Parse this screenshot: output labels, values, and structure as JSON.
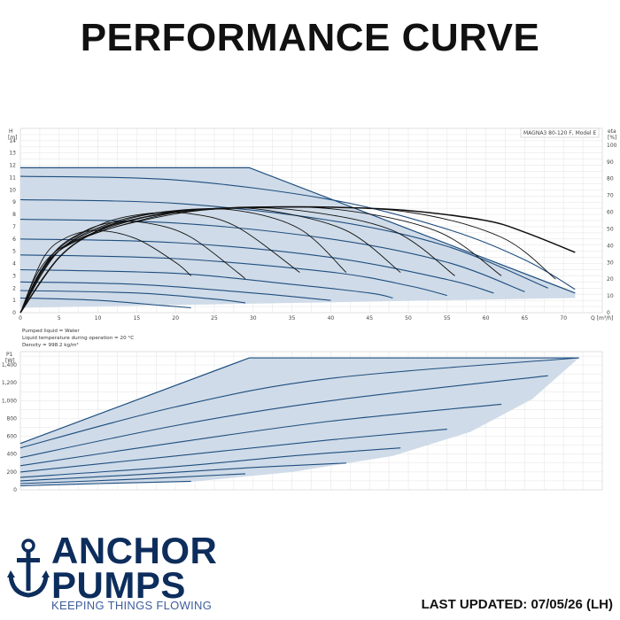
{
  "page_title": "PERFORMANCE CURVE",
  "footer": {
    "brand_line1": "ANCHOR",
    "brand_line2": "PUMPS",
    "tagline": "KEEPING THINGS FLOWING",
    "last_updated": "LAST UPDATED: 07/05/26 (LH)",
    "brand_color": "#0d2d5c",
    "tagline_color": "#3e5e9a"
  },
  "chart_data": [
    {
      "type": "line",
      "model_label": "MAGNA3 80-120 F, Model E",
      "y_axis_label": "H",
      "y_axis_unit": "[m]",
      "y2_axis_label": "eta",
      "y2_axis_unit": "[%]",
      "x_axis_label": "Q [m³/h]",
      "xlim": [
        0,
        75
      ],
      "ylim": [
        0,
        15
      ],
      "y2lim": [
        0,
        110
      ],
      "x_ticks": [
        0,
        5,
        10,
        15,
        20,
        25,
        30,
        35,
        40,
        45,
        50,
        55,
        60,
        65,
        70
      ],
      "y_ticks": [
        0,
        1,
        2,
        3,
        4,
        5,
        6,
        7,
        8,
        9,
        10,
        11,
        12,
        13,
        14
      ],
      "y2_ticks": [
        0,
        10,
        20,
        30,
        40,
        50,
        60,
        70,
        80,
        90,
        100
      ],
      "grid": true,
      "envelope": {
        "max_head_line": [
          [
            0,
            11.8
          ],
          [
            29.5,
            11.8
          ],
          [
            71.5,
            1.6
          ]
        ],
        "min_line": [
          [
            0,
            0.4
          ],
          [
            71.5,
            1.2
          ]
        ]
      },
      "qh_curves": [
        {
          "q": [
            0,
            20,
            40,
            55,
            65,
            71.5
          ],
          "h": [
            11.1,
            10.8,
            9.2,
            6.8,
            4.3,
            1.9
          ]
        },
        {
          "q": [
            0,
            20,
            40,
            55,
            68
          ],
          "h": [
            9.2,
            8.9,
            7.5,
            5.4,
            2.0
          ]
        },
        {
          "q": [
            0,
            20,
            40,
            55,
            65
          ],
          "h": [
            7.6,
            7.3,
            6.0,
            4.1,
            1.7
          ]
        },
        {
          "q": [
            0,
            20,
            40,
            55,
            61
          ],
          "h": [
            6.0,
            5.7,
            4.5,
            2.7,
            1.6
          ]
        },
        {
          "q": [
            0,
            20,
            40,
            50,
            55
          ],
          "h": [
            4.7,
            4.4,
            3.3,
            2.2,
            1.4
          ]
        },
        {
          "q": [
            0,
            20,
            35,
            45,
            48
          ],
          "h": [
            3.5,
            3.2,
            2.3,
            1.6,
            1.2
          ]
        },
        {
          "q": [
            0,
            15,
            30,
            40
          ],
          "h": [
            2.5,
            2.3,
            1.6,
            1.0
          ]
        },
        {
          "q": [
            0,
            15,
            25,
            29
          ],
          "h": [
            1.8,
            1.6,
            1.1,
            0.8
          ]
        },
        {
          "q": [
            0,
            10,
            18,
            22
          ],
          "h": [
            1.2,
            1.0,
            0.6,
            0.4
          ]
        }
      ],
      "eta_curves": [
        {
          "q": [
            0,
            5,
            10,
            15,
            20,
            25,
            30,
            40,
            50,
            60,
            65,
            71.5
          ],
          "eta": [
            0,
            33,
            49,
            56,
            60,
            62,
            63,
            63,
            61,
            55,
            48,
            36
          ]
        },
        {
          "q": [
            0,
            3,
            6,
            10,
            15,
            20,
            22
          ],
          "eta": [
            0,
            33,
            45,
            49,
            44,
            30,
            22
          ]
        },
        {
          "q": [
            0,
            4,
            8,
            12,
            17,
            22,
            28,
            29
          ],
          "eta": [
            0,
            34,
            48,
            54,
            53,
            45,
            24,
            20
          ]
        },
        {
          "q": [
            0,
            4,
            10,
            16,
            22,
            28,
            36
          ],
          "eta": [
            0,
            34,
            52,
            59,
            59,
            51,
            24
          ]
        },
        {
          "q": [
            0,
            5,
            12,
            20,
            28,
            36,
            42
          ],
          "eta": [
            0,
            37,
            54,
            61,
            61,
            50,
            24
          ]
        },
        {
          "q": [
            0,
            5,
            14,
            24,
            32,
            42,
            49
          ],
          "eta": [
            0,
            37,
            56,
            62,
            61,
            49,
            24
          ]
        },
        {
          "q": [
            0,
            5,
            16,
            26,
            36,
            48,
            56
          ],
          "eta": [
            0,
            37,
            57,
            62,
            61,
            49,
            22
          ]
        },
        {
          "q": [
            0,
            5,
            18,
            30,
            42,
            54,
            62
          ],
          "eta": [
            0,
            37,
            58,
            63,
            61,
            48,
            22
          ]
        },
        {
          "q": [
            0,
            5,
            20,
            35,
            50,
            62,
            69
          ],
          "eta": [
            0,
            38,
            59,
            63,
            60,
            45,
            20
          ]
        }
      ],
      "notes": [
        "Pumped liquid = Water",
        "Liquid temperature during operation = 20 °C",
        "Density = 998.2 kg/m³"
      ]
    },
    {
      "type": "line",
      "y_axis_label": "P1",
      "y_axis_unit": "[W]",
      "xlim": [
        0,
        75
      ],
      "ylim": [
        0,
        1550
      ],
      "y_ticks": [
        0,
        200,
        400,
        600,
        800,
        1000,
        1200,
        1400
      ],
      "y_tick_labels": [
        "0",
        "200",
        "400",
        "600",
        "800",
        "1,000",
        "1,200",
        "1,400"
      ],
      "grid": true,
      "envelope": {
        "upper": [
          [
            0,
            520
          ],
          [
            29.5,
            1480
          ],
          [
            72,
            1480
          ]
        ],
        "lower": [
          [
            0,
            40
          ],
          [
            22,
            90
          ],
          [
            35,
            200
          ],
          [
            48,
            380
          ],
          [
            58,
            650
          ],
          [
            66,
            1020
          ],
          [
            72,
            1480
          ]
        ]
      },
      "power_curves": [
        {
          "q": [
            0,
            20,
            40,
            72
          ],
          "p": [
            470,
            930,
            1250,
            1480
          ]
        },
        {
          "q": [
            0,
            20,
            40,
            68
          ],
          "p": [
            360,
            720,
            1000,
            1280
          ]
        },
        {
          "q": [
            0,
            20,
            40,
            62
          ],
          "p": [
            270,
            530,
            770,
            960
          ]
        },
        {
          "q": [
            0,
            20,
            40,
            55
          ],
          "p": [
            200,
            380,
            560,
            680
          ]
        },
        {
          "q": [
            0,
            20,
            35,
            49
          ],
          "p": [
            140,
            260,
            380,
            470
          ]
        },
        {
          "q": [
            0,
            15,
            30,
            42
          ],
          "p": [
            100,
            170,
            250,
            300
          ]
        },
        {
          "q": [
            0,
            15,
            29
          ],
          "p": [
            70,
            120,
            180
          ]
        },
        {
          "q": [
            0,
            10,
            22
          ],
          "p": [
            45,
            70,
            95
          ]
        }
      ]
    }
  ]
}
